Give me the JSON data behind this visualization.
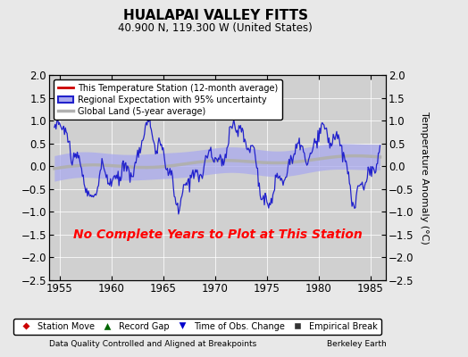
{
  "title": "HUALAPAI VALLEY FITTS",
  "subtitle": "40.900 N, 119.300 W (United States)",
  "ylabel": "Temperature Anomaly (°C)",
  "xlim": [
    1954.0,
    1986.5
  ],
  "ylim": [
    -2.5,
    2.0
  ],
  "yticks": [
    -2.5,
    -2.0,
    -1.5,
    -1.0,
    -0.5,
    0.0,
    0.5,
    1.0,
    1.5,
    2.0
  ],
  "xticks": [
    1955,
    1960,
    1965,
    1970,
    1975,
    1980,
    1985
  ],
  "background_color": "#e8e8e8",
  "plot_bg_color": "#d0d0d0",
  "no_data_text": "No Complete Years to Plot at This Station",
  "footer_left": "Data Quality Controlled and Aligned at Breakpoints",
  "footer_right": "Berkeley Earth",
  "legend1_items": [
    {
      "label": "This Temperature Station (12-month average)",
      "color": "#cc0000",
      "lw": 2
    },
    {
      "label": "Regional Expectation with 95% uncertainty",
      "color": "#2222cc",
      "fill_color": "#aaaaee",
      "lw": 2
    },
    {
      "label": "Global Land (5-year average)",
      "color": "#aaaaaa",
      "lw": 3
    }
  ],
  "legend2_items": [
    {
      "label": "Station Move",
      "marker": "D",
      "color": "#cc0000"
    },
    {
      "label": "Record Gap",
      "marker": "^",
      "color": "#006600"
    },
    {
      "label": "Time of Obs. Change",
      "marker": "v",
      "color": "#0000cc"
    },
    {
      "label": "Empirical Break",
      "marker": "s",
      "color": "#333333"
    }
  ],
  "regional_seed": 10,
  "uncertainty_band": 0.28
}
